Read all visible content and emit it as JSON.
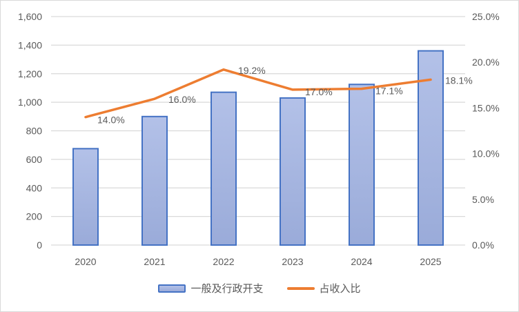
{
  "chart_data": {
    "type": "combo",
    "categories": [
      "2020",
      "2021",
      "2022",
      "2023",
      "2024",
      "2025"
    ],
    "series": [
      {
        "name": "一般及行政开支",
        "type": "bar",
        "axis": "left",
        "values": [
          675,
          900,
          1070,
          1030,
          1125,
          1360
        ]
      },
      {
        "name": "占收入比",
        "type": "line",
        "axis": "right",
        "values": [
          14.0,
          16.0,
          19.2,
          17.0,
          17.1,
          18.1
        ],
        "point_labels": [
          "14.0%",
          "16.0%",
          "19.2%",
          "17.0%",
          "17.1%",
          "18.1%"
        ]
      }
    ],
    "title": "",
    "xlabel": "",
    "ylabel": "",
    "left_axis": {
      "min": 0,
      "max": 1600,
      "step": 200,
      "tick_labels": [
        "0",
        "200",
        "400",
        "600",
        "800",
        "1,000",
        "1,200",
        "1,400",
        "1,600"
      ]
    },
    "right_axis": {
      "min": 0,
      "max": 25,
      "step": 5,
      "tick_labels": [
        "0.0%",
        "5.0%",
        "10.0%",
        "15.0%",
        "20.0%",
        "25.0%"
      ]
    },
    "grid": true,
    "legend_position": "bottom",
    "colors": {
      "bar_fill_top": "#b3c1e8",
      "bar_fill_bottom": "#9aabd9",
      "bar_border": "#4472c4",
      "line": "#ed7d31",
      "grid": "#d9d9d9",
      "text": "#595959",
      "background": "#ffffff"
    }
  }
}
